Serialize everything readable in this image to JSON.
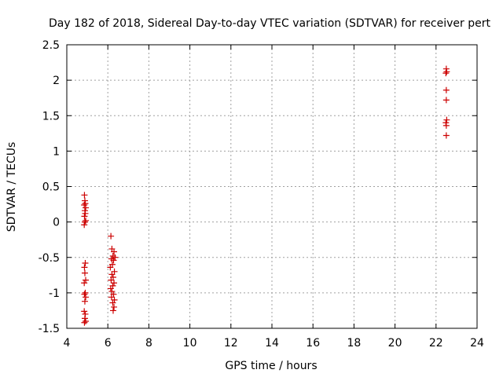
{
  "chart_data": {
    "type": "scatter",
    "title": "Day 182 of 2018, Sidereal Day-to-day VTEC variation (SDTVAR) for receiver pert",
    "xlabel": "GPS time / hours",
    "ylabel": "SDTVAR / TECUs",
    "xlim": [
      4,
      24
    ],
    "ylim": [
      -1.5,
      2.5
    ],
    "xticks": [
      "4",
      "6",
      "8",
      "10",
      "12",
      "14",
      "16",
      "18",
      "20",
      "22",
      "24"
    ],
    "yticks": [
      "-1.5",
      "-1",
      "-0.5",
      "0",
      "0.5",
      "1",
      "1.5",
      "2",
      "2.5"
    ],
    "grid": true,
    "marker": "plus",
    "point_color": "#cc0000",
    "points": [
      [
        4.86,
        0.38
      ],
      [
        4.88,
        0.3
      ],
      [
        4.9,
        0.26
      ],
      [
        4.85,
        0.24
      ],
      [
        4.92,
        0.2
      ],
      [
        4.88,
        0.16
      ],
      [
        4.9,
        0.12
      ],
      [
        4.86,
        0.08
      ],
      [
        4.92,
        0.02
      ],
      [
        4.88,
        0.0
      ],
      [
        4.85,
        -0.04
      ],
      [
        4.9,
        -0.58
      ],
      [
        4.86,
        -0.64
      ],
      [
        4.88,
        -0.72
      ],
      [
        4.92,
        -0.82
      ],
      [
        4.85,
        -0.86
      ],
      [
        4.9,
        -1.0
      ],
      [
        4.86,
        -1.02
      ],
      [
        4.92,
        -1.06
      ],
      [
        4.88,
        -1.12
      ],
      [
        4.85,
        -1.26
      ],
      [
        4.9,
        -1.3
      ],
      [
        4.88,
        -1.36
      ],
      [
        4.92,
        -1.4
      ],
      [
        4.86,
        -1.42
      ],
      [
        6.15,
        -0.2
      ],
      [
        6.2,
        -0.38
      ],
      [
        6.3,
        -0.42
      ],
      [
        6.25,
        -0.48
      ],
      [
        6.35,
        -0.5
      ],
      [
        6.18,
        -0.52
      ],
      [
        6.28,
        -0.54
      ],
      [
        6.22,
        -0.6
      ],
      [
        6.12,
        -0.64
      ],
      [
        6.32,
        -0.7
      ],
      [
        6.2,
        -0.74
      ],
      [
        6.26,
        -0.78
      ],
      [
        6.16,
        -0.82
      ],
      [
        6.3,
        -0.86
      ],
      [
        6.24,
        -0.9
      ],
      [
        6.14,
        -0.94
      ],
      [
        6.2,
        -0.98
      ],
      [
        6.28,
        -1.02
      ],
      [
        6.18,
        -1.06
      ],
      [
        6.32,
        -1.1
      ],
      [
        6.24,
        -1.14
      ],
      [
        6.3,
        -1.2
      ],
      [
        6.26,
        -1.25
      ],
      [
        22.5,
        2.16
      ],
      [
        22.52,
        2.12
      ],
      [
        22.48,
        2.1
      ],
      [
        22.5,
        1.86
      ],
      [
        22.5,
        1.72
      ],
      [
        22.52,
        1.44
      ],
      [
        22.48,
        1.4
      ],
      [
        22.5,
        1.36
      ],
      [
        22.5,
        1.22
      ]
    ]
  }
}
